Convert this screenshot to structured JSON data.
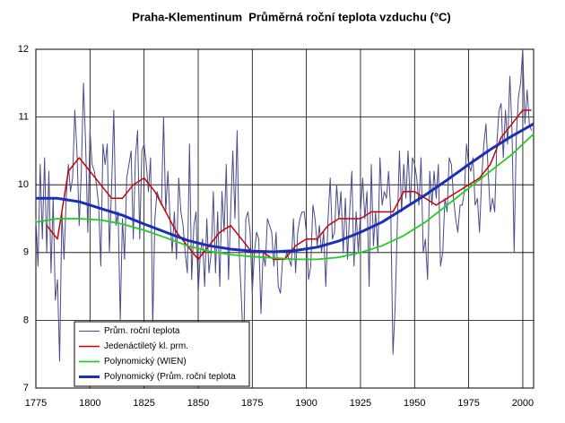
{
  "chart_data": {
    "type": "line",
    "title": "Praha-Klementinum  Průměrná roční teplota vzduchu (°C)",
    "xlim": [
      1775,
      2005
    ],
    "xticks": [
      1775,
      1800,
      1825,
      1850,
      1875,
      1900,
      1925,
      1950,
      1975,
      2000
    ],
    "ylim": [
      7,
      12
    ],
    "yticks": [
      7,
      8,
      9,
      10,
      11,
      12
    ],
    "grid": true,
    "legend": "lower left",
    "series": [
      {
        "name": "Prům. roční teplota",
        "color": "#4a4a8c",
        "width": 1,
        "x": [
          1775,
          1776,
          1777,
          1778,
          1779,
          1780,
          1781,
          1782,
          1783,
          1784,
          1785,
          1786,
          1787,
          1788,
          1789,
          1790,
          1791,
          1792,
          1793,
          1794,
          1795,
          1796,
          1797,
          1798,
          1799,
          1800,
          1801,
          1802,
          1803,
          1804,
          1805,
          1806,
          1807,
          1808,
          1809,
          1810,
          1811,
          1812,
          1813,
          1814,
          1815,
          1816,
          1817,
          1818,
          1819,
          1820,
          1821,
          1822,
          1823,
          1824,
          1825,
          1826,
          1827,
          1828,
          1829,
          1830,
          1831,
          1832,
          1833,
          1834,
          1835,
          1836,
          1837,
          1838,
          1839,
          1840,
          1841,
          1842,
          1843,
          1844,
          1845,
          1846,
          1847,
          1848,
          1849,
          1850,
          1851,
          1852,
          1853,
          1854,
          1855,
          1856,
          1857,
          1858,
          1859,
          1860,
          1861,
          1862,
          1863,
          1864,
          1865,
          1866,
          1867,
          1868,
          1869,
          1870,
          1871,
          1872,
          1873,
          1874,
          1875,
          1876,
          1877,
          1878,
          1879,
          1880,
          1881,
          1882,
          1883,
          1884,
          1885,
          1886,
          1887,
          1888,
          1889,
          1890,
          1891,
          1892,
          1893,
          1894,
          1895,
          1896,
          1897,
          1898,
          1899,
          1900,
          1901,
          1902,
          1903,
          1904,
          1905,
          1906,
          1907,
          1908,
          1909,
          1910,
          1911,
          1912,
          1913,
          1914,
          1915,
          1916,
          1917,
          1918,
          1919,
          1920,
          1921,
          1922,
          1923,
          1924,
          1925,
          1926,
          1927,
          1928,
          1929,
          1930,
          1931,
          1932,
          1933,
          1934,
          1935,
          1936,
          1937,
          1938,
          1939,
          1940,
          1941,
          1942,
          1943,
          1944,
          1945,
          1946,
          1947,
          1948,
          1949,
          1950,
          1951,
          1952,
          1953,
          1954,
          1955,
          1956,
          1957,
          1958,
          1959,
          1960,
          1961,
          1962,
          1963,
          1964,
          1965,
          1966,
          1967,
          1968,
          1969,
          1970,
          1971,
          1972,
          1973,
          1974,
          1975,
          1976,
          1977,
          1978,
          1979,
          1980,
          1981,
          1982,
          1983,
          1984,
          1985,
          1986,
          1987,
          1988,
          1989,
          1990,
          1991,
          1992,
          1993,
          1994,
          1995,
          1996,
          1997,
          1998,
          1999,
          2000,
          2001,
          2002,
          2003,
          2004
        ],
        "values": [
          9.5,
          8.8,
          10.3,
          9.2,
          10.4,
          9.0,
          10.2,
          8.7,
          9.8,
          8.3,
          8.6,
          7.4,
          9.6,
          8.9,
          9.8,
          10.3,
          9.9,
          10.1,
          11.1,
          10.5,
          9.4,
          10.2,
          11.5,
          10.6,
          9.3,
          10.8,
          10.3,
          10.2,
          10.0,
          9.7,
          8.8,
          10.6,
          10.3,
          10.6,
          9.0,
          10.0,
          11.1,
          9.4,
          9.6,
          8.0,
          9.5,
          8.9,
          10.1,
          10.3,
          10.5,
          9.2,
          10.4,
          10.8,
          9.2,
          10.5,
          10.6,
          10.3,
          9.9,
          10.4,
          7.9,
          9.5,
          9.9,
          9.8,
          9.7,
          11.0,
          9.6,
          10.2,
          9.5,
          9.0,
          9.6,
          8.9,
          10.1,
          9.6,
          9.4,
          9.0,
          8.7,
          10.6,
          8.6,
          9.4,
          9.6,
          8.4,
          9.0,
          9.2,
          8.5,
          9.5,
          8.7,
          9.0,
          9.9,
          8.7,
          9.6,
          8.5,
          9.9,
          9.3,
          10.3,
          8.6,
          9.6,
          10.5,
          9.5,
          10.8,
          9.0,
          8.3,
          7.5,
          9.5,
          9.6,
          9.3,
          8.4,
          9.0,
          9.3,
          9.2,
          8.1,
          9.0,
          8.8,
          9.5,
          9.4,
          9.3,
          8.8,
          9.3,
          8.5,
          8.4,
          8.9,
          8.9,
          9.0,
          8.9,
          8.8,
          9.5,
          8.7,
          9.3,
          9.5,
          9.6,
          9.6,
          9.3,
          8.6,
          8.8,
          9.7,
          9.5,
          9.1,
          9.4,
          9.0,
          9.3,
          8.5,
          9.5,
          10.1,
          9.2,
          9.3,
          10.0,
          9.5,
          9.9,
          9.0,
          9.8,
          8.9,
          9.6,
          10.2,
          8.8,
          9.6,
          9.0,
          9.6,
          10.1,
          9.5,
          9.9,
          8.5,
          10.3,
          9.1,
          9.6,
          9.0,
          10.4,
          9.7,
          9.9,
          9.8,
          10.2,
          9.6,
          7.5,
          8.2,
          9.4,
          10.5,
          9.6,
          10.3,
          9.8,
          10.5,
          9.7,
          10.4,
          10.3,
          10.1,
          9.7,
          10.4,
          9.0,
          9.2,
          8.6,
          10.2,
          9.7,
          10.2,
          9.8,
          10.3,
          8.8,
          9.0,
          9.8,
          9.6,
          10.4,
          10.3,
          9.8,
          9.5,
          9.3,
          9.7,
          9.7,
          9.9,
          10.6,
          10.3,
          10.2,
          10.4,
          9.7,
          9.8,
          9.3,
          10.1,
          10.6,
          10.9,
          10.2,
          9.6,
          9.8,
          9.6,
          10.6,
          11.1,
          11.2,
          10.4,
          11.1,
          10.6,
          11.6,
          10.8,
          9.0,
          10.7,
          11.3,
          11.5,
          12.0,
          10.9,
          11.4,
          10.9,
          10.8
        ]
      },
      {
        "name": "Jedenáctiletý kl. prm.",
        "color": "#cc0000",
        "width": 1.5,
        "x": [
          1780,
          1785,
          1790,
          1795,
          1800,
          1805,
          1810,
          1815,
          1820,
          1825,
          1830,
          1835,
          1840,
          1845,
          1850,
          1855,
          1860,
          1865,
          1870,
          1875,
          1880,
          1885,
          1890,
          1895,
          1900,
          1905,
          1910,
          1915,
          1920,
          1925,
          1930,
          1935,
          1940,
          1945,
          1950,
          1955,
          1960,
          1965,
          1970,
          1975,
          1980,
          1985,
          1990,
          1995,
          2000,
          2004
        ],
        "values": [
          9.4,
          9.2,
          10.2,
          10.4,
          10.2,
          10.0,
          9.8,
          9.8,
          10.0,
          10.1,
          9.9,
          9.6,
          9.3,
          9.1,
          8.9,
          9.1,
          9.3,
          9.4,
          9.2,
          9.0,
          9.0,
          8.9,
          8.9,
          9.1,
          9.2,
          9.2,
          9.4,
          9.5,
          9.5,
          9.5,
          9.6,
          9.6,
          9.6,
          9.9,
          9.9,
          9.8,
          9.7,
          9.8,
          9.9,
          10.0,
          10.1,
          10.3,
          10.7,
          10.9,
          11.1,
          11.1
        ]
      },
      {
        "name": "Polynomický (WIEN)",
        "color": "#22cc22",
        "width": 1.8,
        "x": [
          1775,
          1785,
          1795,
          1805,
          1815,
          1825,
          1835,
          1845,
          1855,
          1865,
          1875,
          1885,
          1895,
          1905,
          1915,
          1925,
          1935,
          1945,
          1955,
          1965,
          1975,
          1985,
          1995,
          2005
        ],
        "values": [
          9.45,
          9.5,
          9.5,
          9.48,
          9.42,
          9.33,
          9.22,
          9.1,
          9.02,
          8.97,
          8.94,
          8.92,
          8.9,
          8.9,
          8.93,
          9.0,
          9.1,
          9.25,
          9.45,
          9.7,
          9.95,
          10.2,
          10.45,
          10.75
        ]
      },
      {
        "name": "Polynomický (Prům. roční teplota",
        "color": "#1a2fb8",
        "width": 3,
        "x": [
          1775,
          1785,
          1795,
          1805,
          1815,
          1825,
          1835,
          1845,
          1855,
          1865,
          1875,
          1885,
          1895,
          1905,
          1915,
          1925,
          1935,
          1945,
          1955,
          1965,
          1975,
          1985,
          1995,
          2005
        ],
        "values": [
          9.8,
          9.8,
          9.75,
          9.65,
          9.55,
          9.42,
          9.3,
          9.18,
          9.1,
          9.05,
          9.02,
          9.01,
          9.03,
          9.08,
          9.17,
          9.3,
          9.45,
          9.65,
          9.85,
          10.07,
          10.3,
          10.52,
          10.72,
          10.9
        ]
      }
    ]
  }
}
